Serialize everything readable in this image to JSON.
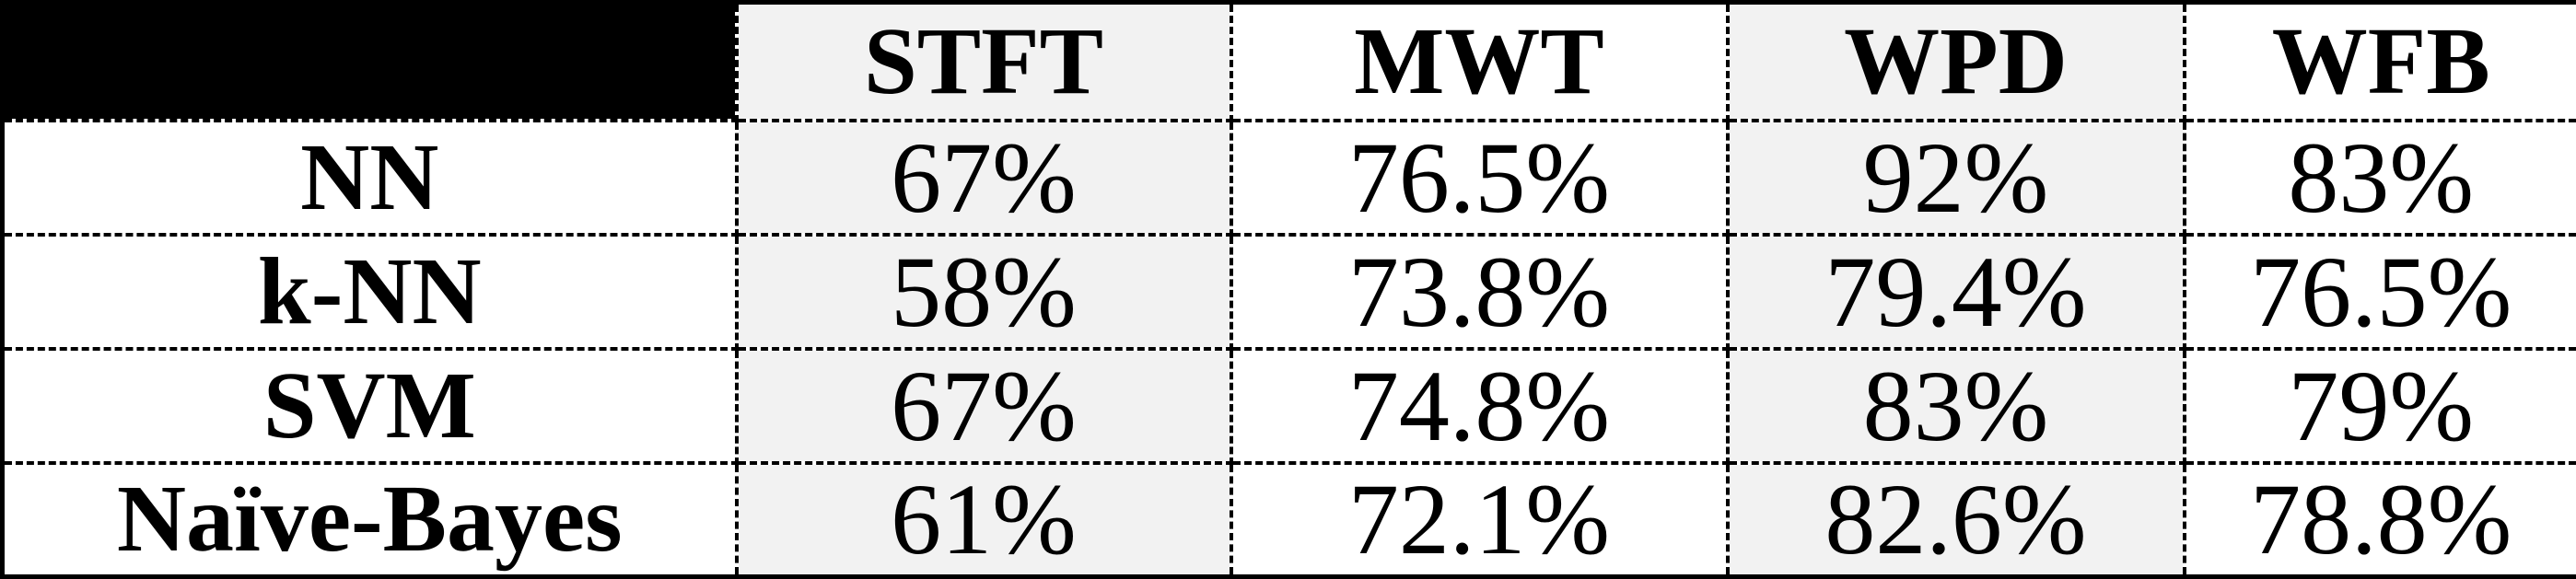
{
  "table": {
    "columns": [
      "STFT",
      "MWT",
      "WPD",
      "WFB"
    ],
    "rows": [
      {
        "label": "NN",
        "cells": [
          "67%",
          "76.5%",
          "92%",
          "83%"
        ]
      },
      {
        "label": "k-NN",
        "cells": [
          "58%",
          "73.8%",
          "79.4%",
          "76.5%"
        ]
      },
      {
        "label": "SVM",
        "cells": [
          "67%",
          "74.8%",
          "83%",
          "79%"
        ]
      },
      {
        "label": "Naïve-Bayes",
        "cells": [
          "61%",
          "72.1%",
          "82.6%",
          "78.8%"
        ]
      }
    ]
  }
}
